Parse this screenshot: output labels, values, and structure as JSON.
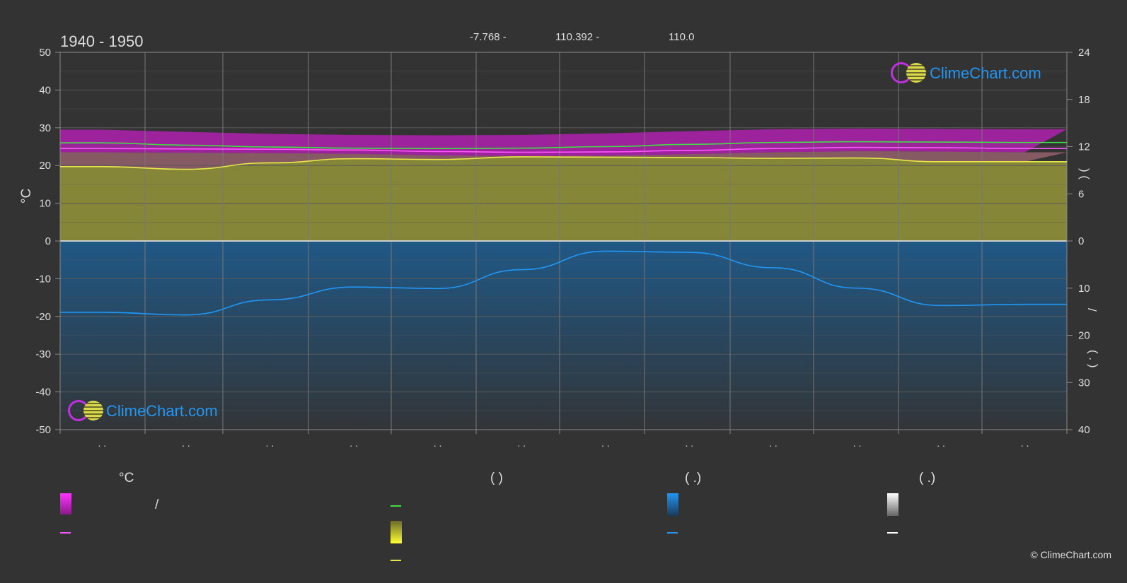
{
  "header": {
    "period": "1940 - 1950",
    "lat": "-7.768 -",
    "lon": "110.392 -",
    "elev": "110.0"
  },
  "axis_left": {
    "unit": "°C"
  },
  "axis_right": {
    "top_marks": ")   (",
    "bottom_marks": "/",
    "bottom_marks2": "( . )"
  },
  "watermark": {
    "text": "ClimeChart.com"
  },
  "copyright": "© ClimeChart.com",
  "legend": {
    "col1_head": "°C",
    "col2_head": "(          )",
    "col3_head": "(   .)",
    "col4_head": "(   .)",
    "col1_slash": "/"
  },
  "colors": {
    "background": "#333333",
    "grid": "#5a5a5a",
    "magenta_band": "#c21fc2",
    "pink_band": "#c87a8a",
    "yellow_band": "#8f8f3a",
    "blue_band": "#1f5a8a",
    "line_green": "#44dd44",
    "line_magenta": "#ff55ff",
    "line_yellow": "#e8e84a",
    "line_blue": "#2196f3",
    "logo_blue": "#2196f3"
  },
  "chart_data": {
    "type": "area",
    "title": "1940 - 1950",
    "ylabel_left": "°C",
    "ylim_left": [
      -50,
      50
    ],
    "yticks_left": [
      50,
      40,
      30,
      20,
      10,
      0,
      -10,
      -20,
      -30,
      -40,
      -50
    ],
    "yticks_right_top": [
      24,
      18,
      12,
      6,
      0
    ],
    "yticks_right_bottom": [
      10,
      20,
      30,
      40
    ],
    "x_tick_labels": [
      ". .",
      ". .",
      ". .",
      ". .",
      ". .",
      ". .",
      ". .",
      ". .",
      ". .",
      ". .",
      ". .",
      ". ."
    ],
    "grid": true,
    "series": [
      {
        "values": [
          26.0,
          25.4,
          24.9,
          24.6,
          24.5,
          24.6,
          25.0,
          25.6,
          26.1,
          26.3,
          26.2,
          26.1
        ]
      },
      {
        "values": [
          24.5,
          24.4,
          24.3,
          24.1,
          23.7,
          23.5,
          23.6,
          24.0,
          24.5,
          24.8,
          24.7,
          24.5
        ]
      },
      {
        "values": [
          19.7,
          19.0,
          20.7,
          21.8,
          21.6,
          22.3,
          22.2,
          22.1,
          21.9,
          22.0,
          21.0,
          21.0
        ]
      },
      {
        "values": [
          -18.9,
          -19.6,
          -15.6,
          -12.2,
          -12.6,
          -7.6,
          -2.7,
          -3.0,
          -7.1,
          -12.5,
          -17.1,
          -16.8
        ]
      }
    ]
  }
}
